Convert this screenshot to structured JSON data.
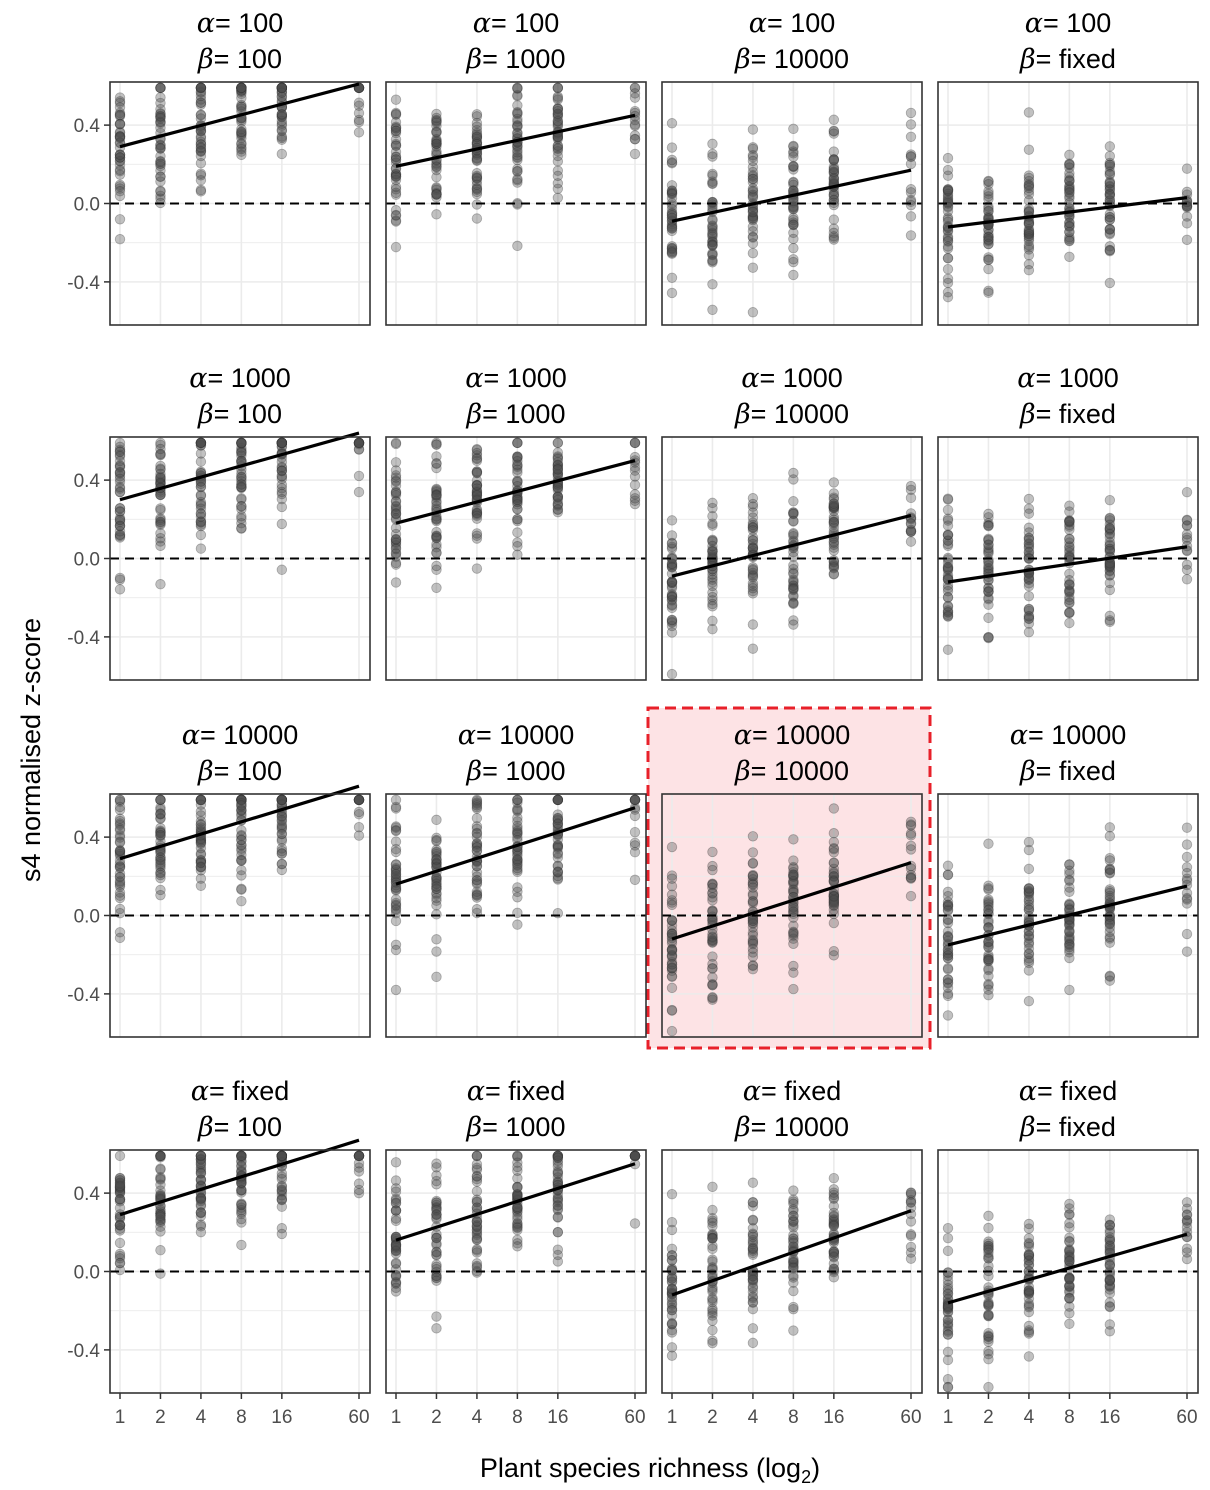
{
  "chart_data": {
    "type": "scatter",
    "layout": "4x4 facet grid",
    "xlabel_main": "Plant species richness (log",
    "xlabel_sub": "2",
    "xlabel_end": ")",
    "ylabel": "s4 normalised z-score",
    "x_ticks": [
      1,
      2,
      4,
      8,
      16,
      60
    ],
    "x_tick_labels": [
      "1",
      "2",
      "4",
      "8",
      "16",
      "60"
    ],
    "x_scale": "log2",
    "y_ticks": [
      0.4,
      0.0,
      -0.4
    ],
    "y_tick_labels": [
      "0.4",
      "0.0",
      "-0.4"
    ],
    "ylim": [
      -0.62,
      0.62
    ],
    "grid": true,
    "reference_line": {
      "y": 0.0,
      "style": "dashed"
    },
    "alpha_symbol": "α",
    "beta_symbol": "β",
    "highlight": {
      "alpha": "10000",
      "beta": "10000",
      "color": "#e8202a",
      "fill": "#fde3e5"
    },
    "facets": [
      {
        "alpha": "100",
        "beta": "100",
        "fit": {
          "y_at_1": 0.29,
          "y_at_60": 0.61
        }
      },
      {
        "alpha": "100",
        "beta": "1000",
        "fit": {
          "y_at_1": 0.19,
          "y_at_60": 0.45
        }
      },
      {
        "alpha": "100",
        "beta": "10000",
        "fit": {
          "y_at_1": -0.09,
          "y_at_60": 0.17
        }
      },
      {
        "alpha": "100",
        "beta": "fixed",
        "fit": {
          "y_at_1": -0.12,
          "y_at_60": 0.03
        }
      },
      {
        "alpha": "1000",
        "beta": "100",
        "fit": {
          "y_at_1": 0.3,
          "y_at_60": 0.64
        }
      },
      {
        "alpha": "1000",
        "beta": "1000",
        "fit": {
          "y_at_1": 0.18,
          "y_at_60": 0.5
        }
      },
      {
        "alpha": "1000",
        "beta": "10000",
        "fit": {
          "y_at_1": -0.09,
          "y_at_60": 0.22
        }
      },
      {
        "alpha": "1000",
        "beta": "fixed",
        "fit": {
          "y_at_1": -0.12,
          "y_at_60": 0.06
        }
      },
      {
        "alpha": "10000",
        "beta": "100",
        "fit": {
          "y_at_1": 0.29,
          "y_at_60": 0.66
        }
      },
      {
        "alpha": "10000",
        "beta": "1000",
        "fit": {
          "y_at_1": 0.16,
          "y_at_60": 0.55
        }
      },
      {
        "alpha": "10000",
        "beta": "10000",
        "fit": {
          "y_at_1": -0.12,
          "y_at_60": 0.27
        }
      },
      {
        "alpha": "10000",
        "beta": "fixed",
        "fit": {
          "y_at_1": -0.15,
          "y_at_60": 0.15
        }
      },
      {
        "alpha": "fixed",
        "beta": "100",
        "fit": {
          "y_at_1": 0.29,
          "y_at_60": 0.67
        }
      },
      {
        "alpha": "fixed",
        "beta": "1000",
        "fit": {
          "y_at_1": 0.16,
          "y_at_60": 0.55
        }
      },
      {
        "alpha": "fixed",
        "beta": "10000",
        "fit": {
          "y_at_1": -0.12,
          "y_at_60": 0.31
        }
      },
      {
        "alpha": "fixed",
        "beta": "fixed",
        "fit": {
          "y_at_1": -0.16,
          "y_at_60": 0.19
        }
      }
    ],
    "point_color": "#4d4d4d",
    "point_opacity": 0.35,
    "point_note": "Many semi-transparent grey points per richness level, spread vertically around the fit."
  }
}
